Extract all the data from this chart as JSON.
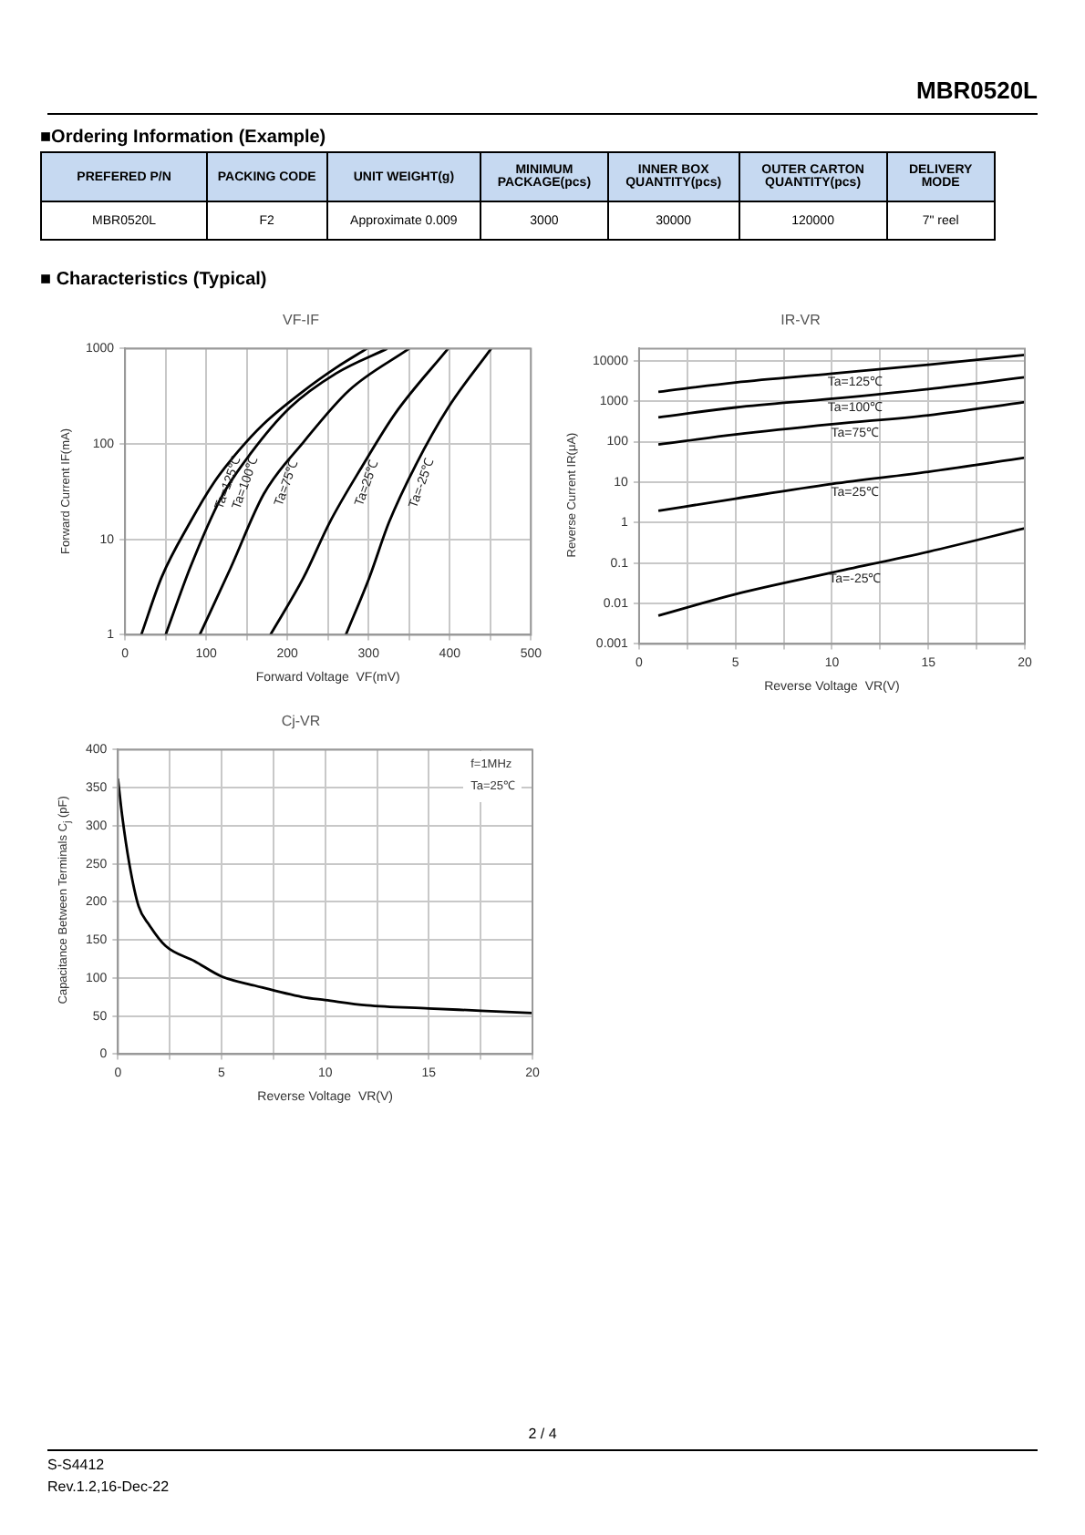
{
  "chart_data": [
    {
      "type": "other",
      "title": "MBR0520L",
      "annotations": [
        "2 / 4",
        "S-S4412",
        "Rev.1.2,16-Dec-22"
      ]
    },
    {
      "type": "other",
      "title": "■Ordering Information (Example)",
      "categories": [
        "PREFERED P/N",
        "PACKING CODE",
        "UNIT WEIGHT(g)",
        "MINIMUM PACKAGE(pcs)",
        "INNER BOX QUANTITY(pcs)",
        "OUTER CARTON QUANTITY(pcs)",
        "DELIVERY MODE"
      ],
      "cell_labels": [
        [
          "MBR0520L",
          "F2",
          "Approximate 0.009",
          "3000",
          "30000",
          "120000",
          "7\" reel"
        ]
      ]
    },
    {
      "type": "other",
      "title": "■ Characteristics (Typical)"
    },
    {
      "type": "line",
      "title": "VF-IF",
      "xlabel": "Forward Voltage  VF(mV)",
      "ylabel": "Forward Current  IF(mA)",
      "log": "y",
      "grid": true,
      "xlim": [
        0,
        500
      ],
      "xticks": [
        0,
        {
          "value": 50,
          "label": null
        },
        100,
        {
          "value": 150,
          "label": null
        },
        200,
        {
          "value": 250,
          "label": null
        },
        300,
        {
          "value": 350,
          "label": null
        },
        400,
        {
          "value": 450,
          "label": null
        },
        500
      ],
      "ylim": [
        1,
        1000
      ],
      "yticks": [
        1,
        10,
        100,
        1000
      ],
      "series": [
        {
          "name": "Ta=125℃",
          "color": "#000000",
          "x": [
            20,
            45,
            80,
            110,
            140,
            170,
            220,
            260,
            298
          ],
          "values": [
            1,
            4,
            15,
            40,
            85,
            160,
            360,
            630,
            1000
          ]
        },
        {
          "name": "Ta=100℃",
          "color": "#000000",
          "x": [
            50,
            80,
            118,
            155,
            203,
            260,
            323
          ],
          "values": [
            1,
            5,
            27,
            80,
            240,
            550,
            1000
          ]
        },
        {
          "name": "Ta=75℃",
          "color": "#000000",
          "x": [
            92,
            130,
            171,
            220,
            276,
            350
          ],
          "values": [
            1,
            5,
            30,
            105,
            365,
            1000
          ]
        },
        {
          "name": "Ta=25℃",
          "color": "#000000",
          "x": [
            179,
            220,
            252,
            293,
            333,
            398
          ],
          "values": [
            1,
            4,
            15,
            60,
            210,
            1000
          ]
        },
        {
          "name": "Ta=-25℃",
          "color": "#000000",
          "x": [
            272,
            301,
            325,
            358,
            398,
            451
          ],
          "values": [
            1,
            4,
            15,
            60,
            240,
            1000
          ]
        }
      ]
    },
    {
      "type": "line",
      "title": "IR-VR",
      "xlabel": "Reverse Voltage  VR(V)",
      "ylabel": "Reverse Current  IR(μA)",
      "log": "y",
      "grid": true,
      "xlim": [
        0,
        20
      ],
      "xticks": [
        0,
        {
          "value": 2.5,
          "label": null
        },
        5,
        {
          "value": 7.5,
          "label": null
        },
        10,
        {
          "value": 12.5,
          "label": null
        },
        15,
        {
          "value": 17.5,
          "label": null
        },
        20
      ],
      "ylim": [
        0.001,
        20000
      ],
      "yticks": [
        0.001,
        0.01,
        0.1,
        1,
        10,
        100,
        1000,
        10000
      ],
      "series": [
        {
          "name": "Ta=125℃",
          "color": "#000000",
          "x": [
            1,
            5,
            10,
            15,
            20
          ],
          "values": [
            1700,
            2900,
            4800,
            8000,
            14000
          ]
        },
        {
          "name": "Ta=100℃",
          "color": "#000000",
          "x": [
            1,
            5,
            10,
            15,
            20
          ],
          "values": [
            400,
            700,
            1150,
            2000,
            3900
          ]
        },
        {
          "name": "Ta=75℃",
          "color": "#000000",
          "x": [
            1,
            5,
            10,
            15,
            20
          ],
          "values": [
            85,
            150,
            270,
            450,
            950
          ]
        },
        {
          "name": "Ta=25℃",
          "color": "#000000",
          "x": [
            1,
            5,
            10,
            15,
            20
          ],
          "values": [
            1.95,
            3.9,
            9,
            18,
            40
          ]
        },
        {
          "name": "Ta=-25℃",
          "color": "#000000",
          "x": [
            1,
            5,
            10,
            15,
            20
          ],
          "values": [
            0.005,
            0.017,
            0.058,
            0.19,
            0.72
          ]
        }
      ]
    },
    {
      "type": "line",
      "title": "Cj-VR",
      "xlabel": "Reverse Voltage  VR(V)",
      "ylabel": "Capacitance Between Terminals C$_{j}$ (pF)",
      "grid": true,
      "xlim": [
        0,
        20
      ],
      "xticks": [
        0,
        {
          "value": 2.5,
          "label": null
        },
        5,
        {
          "value": 7.5,
          "label": null
        },
        10,
        {
          "value": 12.5,
          "label": null
        },
        15,
        {
          "value": 17.5,
          "label": null
        },
        20
      ],
      "ylim": [
        0,
        400
      ],
      "yticks": [
        0,
        50,
        100,
        150,
        200,
        250,
        300,
        350,
        400
      ],
      "series": [
        {
          "color": "#000000",
          "x": [
            0,
            0.2,
            0.55,
            1,
            1.5,
            2.3,
            3.7,
            5,
            6.6,
            8.9,
            10,
            12,
            15,
            17.5,
            20
          ],
          "values": [
            362,
            314,
            250,
            194,
            170,
            142,
            122,
            102,
            90,
            75,
            71,
            64,
            60,
            57,
            54
          ]
        }
      ],
      "annotations": [
        "f=1MHz",
        "Ta=25℃"
      ]
    }
  ]
}
